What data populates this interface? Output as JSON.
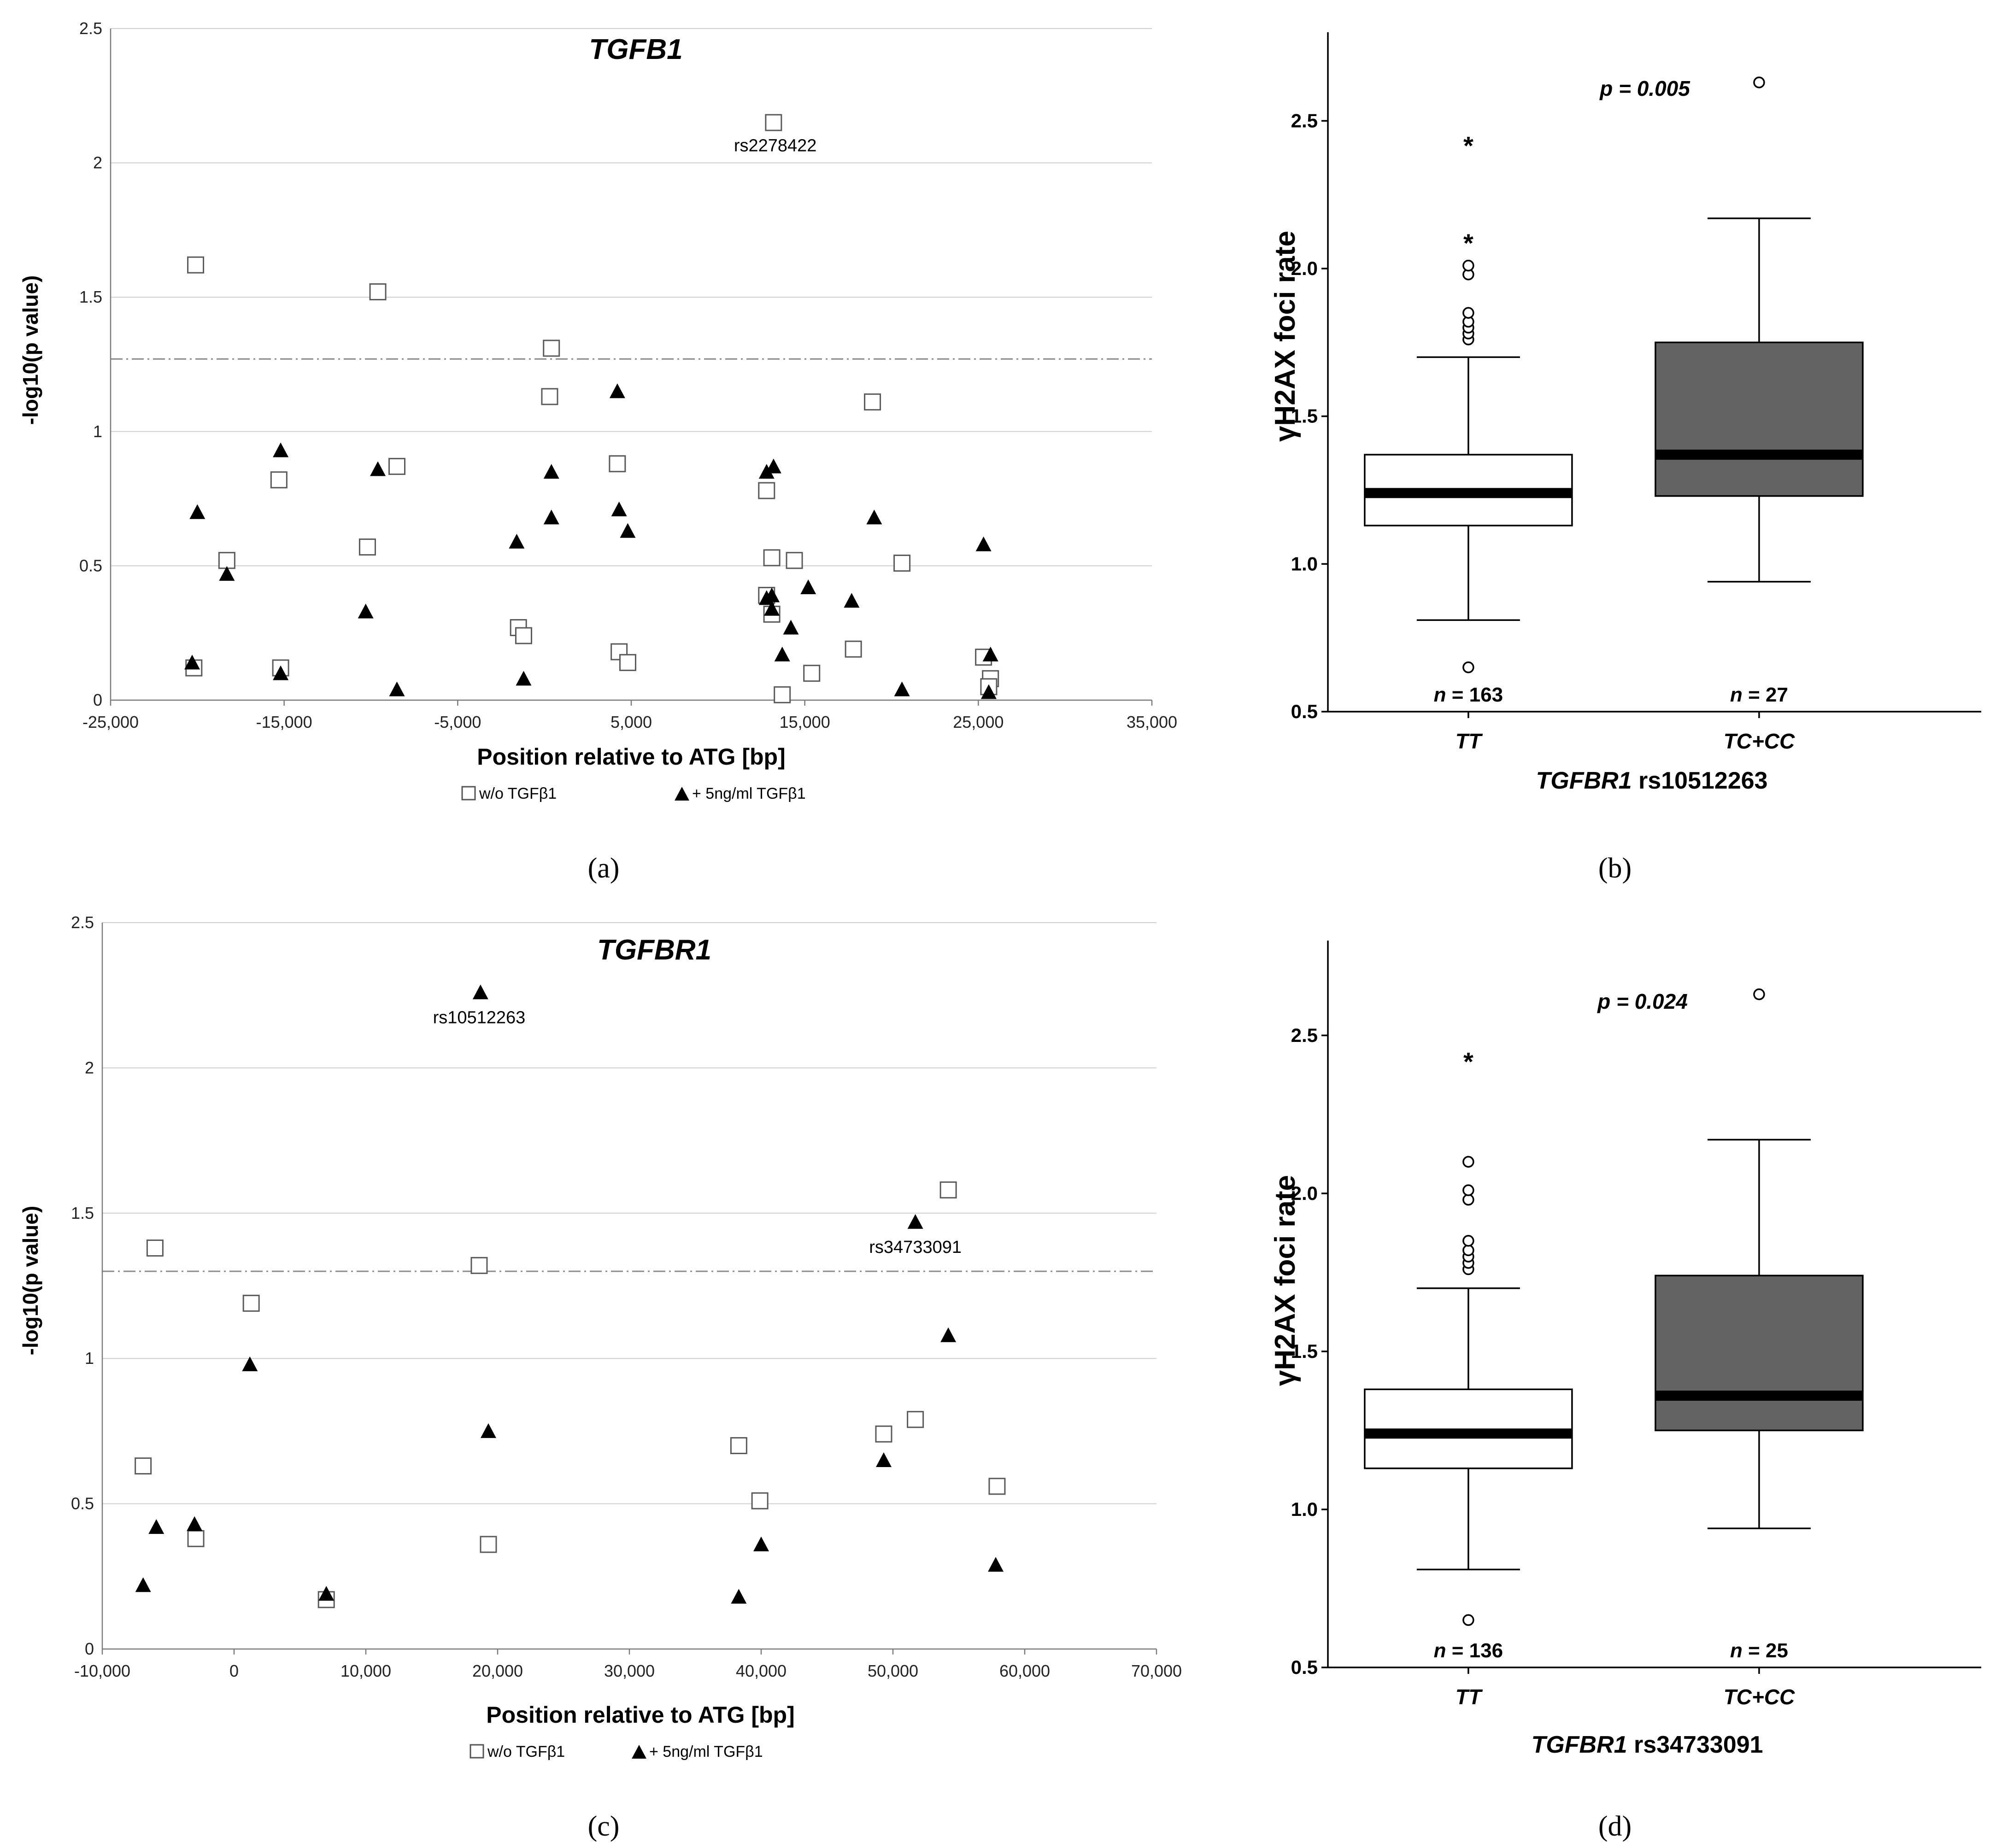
{
  "panels": [
    {
      "id": "a",
      "label": "(a)"
    },
    {
      "id": "b",
      "label": "(b)"
    },
    {
      "id": "c",
      "label": "(c)"
    },
    {
      "id": "d",
      "label": "(d)"
    }
  ],
  "chart_data": [
    {
      "id": "a",
      "type": "scatter",
      "title": "TGFB1",
      "xlabel": "Position relative to ATG [bp]",
      "ylabel": "-log10(p value)",
      "xlim": [
        -25000,
        35000
      ],
      "ylim": [
        0,
        2.5
      ],
      "xticks": [
        -25000,
        -15000,
        -5000,
        5000,
        15000,
        25000,
        35000
      ],
      "xtick_labels": [
        "-25,000",
        "-15,000",
        "-5,000",
        "5,000",
        "15,000",
        "25,000",
        "35,000"
      ],
      "yticks": [
        0,
        0.5,
        1,
        1.5,
        2,
        2.5
      ],
      "ytick_labels": [
        "0",
        "0.5",
        "1",
        "1.5",
        "2",
        "2.5"
      ],
      "threshold": 1.27,
      "legend": [
        "w/o TGFβ1",
        "+ 5ng/ml TGFβ1"
      ],
      "annotations": [
        {
          "text": "rs2278422",
          "x": 13300,
          "y": 2.15,
          "dy": 0.1
        }
      ],
      "series": [
        {
          "name": "w/o TGFβ1",
          "marker": "square",
          "points": [
            [
              -20100,
              1.62
            ],
            [
              -18300,
              0.52
            ],
            [
              -15300,
              0.82
            ],
            [
              -15200,
              0.12
            ],
            [
              -20200,
              0.12
            ],
            [
              -10200,
              0.57
            ],
            [
              -9600,
              1.52
            ],
            [
              -8500,
              0.87
            ],
            [
              -1500,
              0.27
            ],
            [
              -1200,
              0.24
            ],
            [
              400,
              1.31
            ],
            [
              300,
              1.13
            ],
            [
              4200,
              0.88
            ],
            [
              4300,
              0.18
            ],
            [
              4800,
              0.14
            ],
            [
              12800,
              0.78
            ],
            [
              13200,
              2.15
            ],
            [
              13100,
              0.53
            ],
            [
              12800,
              0.39
            ],
            [
              13100,
              0.32
            ],
            [
              13700,
              0.02
            ],
            [
              14400,
              0.52
            ],
            [
              15400,
              0.1
            ],
            [
              17800,
              0.19
            ],
            [
              18900,
              1.11
            ],
            [
              20600,
              0.51
            ],
            [
              25300,
              0.16
            ],
            [
              25700,
              0.08
            ],
            [
              25600,
              0.05
            ]
          ]
        },
        {
          "name": "+ 5ng/ml TGFβ1",
          "marker": "triangle",
          "points": [
            [
              -20000,
              0.7
            ],
            [
              -20300,
              0.14
            ],
            [
              -18300,
              0.47
            ],
            [
              -15200,
              0.93
            ],
            [
              -15200,
              0.1
            ],
            [
              -10300,
              0.33
            ],
            [
              -9600,
              0.86
            ],
            [
              -8500,
              0.04
            ],
            [
              -1600,
              0.59
            ],
            [
              -1200,
              0.08
            ],
            [
              400,
              0.85
            ],
            [
              400,
              0.68
            ],
            [
              4200,
              1.15
            ],
            [
              4300,
              0.71
            ],
            [
              4800,
              0.63
            ],
            [
              12800,
              0.85
            ],
            [
              13200,
              0.87
            ],
            [
              12800,
              0.38
            ],
            [
              13100,
              0.39
            ],
            [
              13100,
              0.34
            ],
            [
              13700,
              0.17
            ],
            [
              14200,
              0.27
            ],
            [
              15200,
              0.42
            ],
            [
              17700,
              0.37
            ],
            [
              19000,
              0.68
            ],
            [
              20600,
              0.04
            ],
            [
              25300,
              0.58
            ],
            [
              25700,
              0.17
            ],
            [
              25600,
              0.03
            ]
          ]
        }
      ]
    },
    {
      "id": "b",
      "type": "boxplot",
      "ylabel": "γH2AX foci rate",
      "ylim": [
        0.5,
        2.8
      ],
      "yticks": [
        0.5,
        1.0,
        1.5,
        2.0,
        2.5
      ],
      "ytick_labels": [
        "0.5",
        "1.0",
        "1.5",
        "2.0",
        "2.5"
      ],
      "categories": [
        "TT",
        "TC+CC"
      ],
      "xlabel_gene": "TGFBR1",
      "xlabel_snp": " rs10512263",
      "p_text": "p = 0.005",
      "boxes": [
        {
          "category": "TT",
          "q1": 1.13,
          "median": 1.24,
          "q3": 1.37,
          "whisker_low": 0.81,
          "whisker_high": 1.7,
          "outliers": [
            0.65,
            1.76,
            1.78,
            1.8,
            1.82,
            1.85,
            1.98,
            2.01
          ],
          "extremes": [
            2.1,
            2.43
          ],
          "n_prefix": "n",
          "n_value": " = 163",
          "fill": "#ffffff"
        },
        {
          "category": "TC+CC",
          "q1": 1.23,
          "median": 1.37,
          "q3": 1.75,
          "whisker_low": 0.94,
          "whisker_high": 2.17,
          "outliers": [
            2.63
          ],
          "extremes": [],
          "n_prefix": "n",
          "n_value": " = 27",
          "fill": "#636363"
        }
      ]
    },
    {
      "id": "c",
      "type": "scatter",
      "title": "TGFBR1",
      "xlabel": "Position relative to ATG [bp]",
      "ylabel": "-log10(p value)",
      "xlim": [
        -10000,
        70000
      ],
      "ylim": [
        0,
        2.5
      ],
      "xticks": [
        -10000,
        0,
        10000,
        20000,
        30000,
        40000,
        50000,
        60000,
        70000
      ],
      "xtick_labels": [
        "-10,000",
        "0",
        "10,000",
        "20,000",
        "30,000",
        "40,000",
        "50,000",
        "60,000",
        "70,000"
      ],
      "yticks": [
        0,
        0.5,
        1,
        1.5,
        2,
        2.5
      ],
      "ytick_labels": [
        "0",
        "0.5",
        "1",
        "1.5",
        "2",
        "2.5"
      ],
      "threshold": 1.3,
      "legend": [
        "w/o TGFβ1",
        "+ 5ng/ml TGFβ1"
      ],
      "annotations": [
        {
          "text": "rs10512263",
          "x": 18600,
          "y": 2.26,
          "dy": 0.1
        },
        {
          "text": "rs34733091",
          "x": 51700,
          "y": 1.47,
          "dy": 0.1
        }
      ],
      "series": [
        {
          "name": "w/o TGFβ1",
          "marker": "square",
          "points": [
            [
              -6900,
              0.63
            ],
            [
              -6000,
              1.38
            ],
            [
              -2900,
              0.38
            ],
            [
              1300,
              1.19
            ],
            [
              7000,
              0.17
            ],
            [
              18600,
              1.32
            ],
            [
              19300,
              0.36
            ],
            [
              38300,
              0.7
            ],
            [
              39900,
              0.51
            ],
            [
              49300,
              0.74
            ],
            [
              51700,
              0.79
            ],
            [
              54200,
              1.58
            ],
            [
              57900,
              0.56
            ]
          ]
        },
        {
          "name": "+ 5ng/ml TGFβ1",
          "marker": "triangle",
          "points": [
            [
              -6900,
              0.22
            ],
            [
              -5900,
              0.42
            ],
            [
              -3000,
              0.43
            ],
            [
              1200,
              0.98
            ],
            [
              7000,
              0.19
            ],
            [
              18700,
              2.26
            ],
            [
              19300,
              0.75
            ],
            [
              38300,
              0.18
            ],
            [
              40000,
              0.36
            ],
            [
              49300,
              0.65
            ],
            [
              51700,
              1.47
            ],
            [
              54200,
              1.08
            ],
            [
              57800,
              0.29
            ]
          ]
        }
      ]
    },
    {
      "id": "d",
      "type": "boxplot",
      "ylabel": "γH2AX foci rate",
      "ylim": [
        0.5,
        2.8
      ],
      "yticks": [
        0.5,
        1.0,
        1.5,
        2.0,
        2.5
      ],
      "ytick_labels": [
        "0.5",
        "1.0",
        "1.5",
        "2.0",
        "2.5"
      ],
      "categories": [
        "TT",
        "TC+CC"
      ],
      "xlabel_gene": "TGFBR1",
      "xlabel_snp": " rs34733091",
      "p_text": "p = 0.024",
      "boxes": [
        {
          "category": "TT",
          "q1": 1.13,
          "median": 1.24,
          "q3": 1.38,
          "whisker_low": 0.81,
          "whisker_high": 1.7,
          "outliers": [
            0.65,
            1.76,
            1.78,
            1.8,
            1.82,
            1.85,
            1.98,
            2.01,
            2.1
          ],
          "extremes": [
            2.43
          ],
          "n_prefix": "n",
          "n_value": " = 136",
          "fill": "#ffffff"
        },
        {
          "category": "TC+CC",
          "q1": 1.25,
          "median": 1.36,
          "q3": 1.74,
          "whisker_low": 0.94,
          "whisker_high": 2.17,
          "outliers": [
            2.63
          ],
          "extremes": [],
          "n_prefix": "n",
          "n_value": " = 25",
          "fill": "#636363"
        }
      ]
    }
  ]
}
